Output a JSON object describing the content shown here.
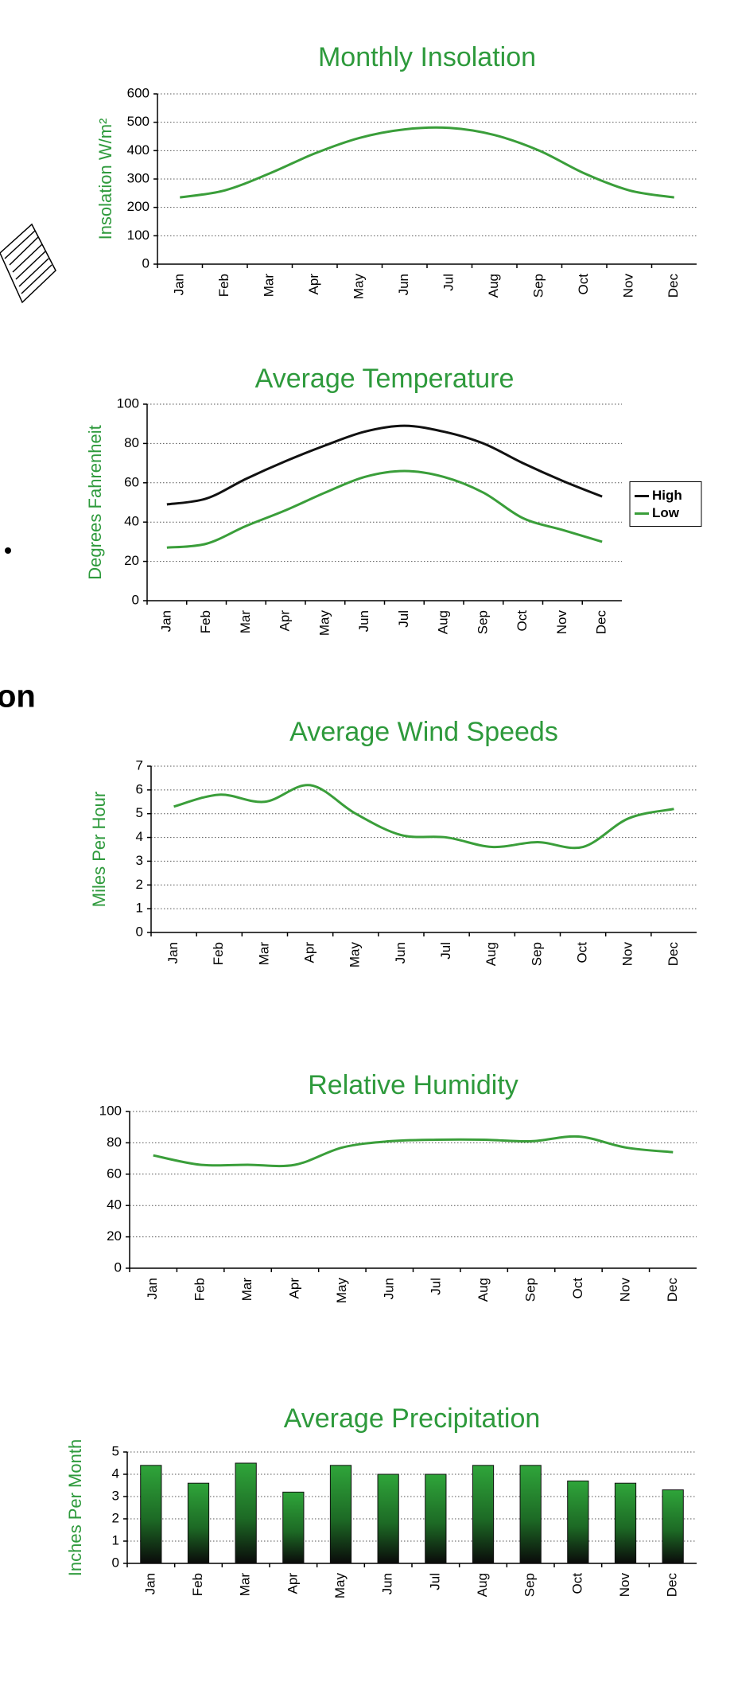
{
  "fragment_text": "on",
  "chart_data": [
    {
      "type": "line",
      "title": "Monthly Insolation",
      "y_label": "Insolation W/m²",
      "categories": [
        "Jan",
        "Feb",
        "Mar",
        "Apr",
        "May",
        "Jun",
        "Jul",
        "Aug",
        "Sep",
        "Oct",
        "Nov",
        "Dec"
      ],
      "values": [
        235,
        260,
        320,
        390,
        445,
        475,
        480,
        455,
        400,
        320,
        260,
        235
      ],
      "color": "#3a9e3a",
      "ylim": [
        0,
        600
      ],
      "yticks": [
        0,
        100,
        200,
        300,
        400,
        500,
        600
      ],
      "grid": true
    },
    {
      "type": "line",
      "title": "Average Temperature",
      "y_label": "Degrees Fahrenheit",
      "categories": [
        "Jan",
        "Feb",
        "Mar",
        "Apr",
        "May",
        "Jun",
        "Jul",
        "Aug",
        "Sep",
        "Oct",
        "Nov",
        "Dec"
      ],
      "series": [
        {
          "name": "High",
          "color": "#111111",
          "values": [
            49,
            52,
            62,
            71,
            79,
            86,
            89,
            86,
            80,
            70,
            61,
            53
          ]
        },
        {
          "name": "Low",
          "color": "#3a9e3a",
          "values": [
            27,
            29,
            38,
            46,
            55,
            63,
            66,
            63,
            55,
            42,
            36,
            30
          ]
        }
      ],
      "ylim": [
        0,
        100
      ],
      "yticks": [
        0,
        20,
        40,
        60,
        80,
        100
      ],
      "grid": true,
      "legend": "right"
    },
    {
      "type": "line",
      "title": "Average Wind Speeds",
      "y_label": "Miles Per Hour",
      "categories": [
        "Jan",
        "Feb",
        "Mar",
        "Apr",
        "May",
        "Jun",
        "Jul",
        "Aug",
        "Sep",
        "Oct",
        "Nov",
        "Dec"
      ],
      "values": [
        5.3,
        5.8,
        5.5,
        6.2,
        5.0,
        4.1,
        4.0,
        3.6,
        3.8,
        3.6,
        4.8,
        5.2
      ],
      "color": "#3a9e3a",
      "ylim": [
        0,
        7
      ],
      "yticks": [
        0,
        1,
        2,
        3,
        4,
        5,
        6,
        7
      ],
      "grid": true
    },
    {
      "type": "line",
      "title": "Relative Humidity",
      "categories": [
        "Jan",
        "Feb",
        "Mar",
        "Apr",
        "May",
        "Jun",
        "Jul",
        "Aug",
        "Sep",
        "Oct",
        "Nov",
        "Dec"
      ],
      "values": [
        72,
        66,
        66,
        66,
        77,
        81,
        82,
        82,
        81,
        84,
        77,
        74
      ],
      "color": "#3a9e3a",
      "ylim": [
        0,
        100
      ],
      "yticks": [
        0,
        20,
        40,
        60,
        80,
        100
      ],
      "grid": true
    },
    {
      "type": "bar",
      "title": "Average Precipitation",
      "y_label": "Inches Per Month",
      "categories": [
        "Jan",
        "Feb",
        "Mar",
        "Apr",
        "May",
        "Jun",
        "Jul",
        "Aug",
        "Sep",
        "Oct",
        "Nov",
        "Dec"
      ],
      "values": [
        4.4,
        3.6,
        4.5,
        3.2,
        4.4,
        4.0,
        4.0,
        4.4,
        4.4,
        3.7,
        3.6,
        3.3
      ],
      "color": "#2fa53a",
      "ylim": [
        0,
        5
      ],
      "yticks": [
        0,
        1,
        2,
        3,
        4,
        5
      ],
      "grid": true
    }
  ]
}
